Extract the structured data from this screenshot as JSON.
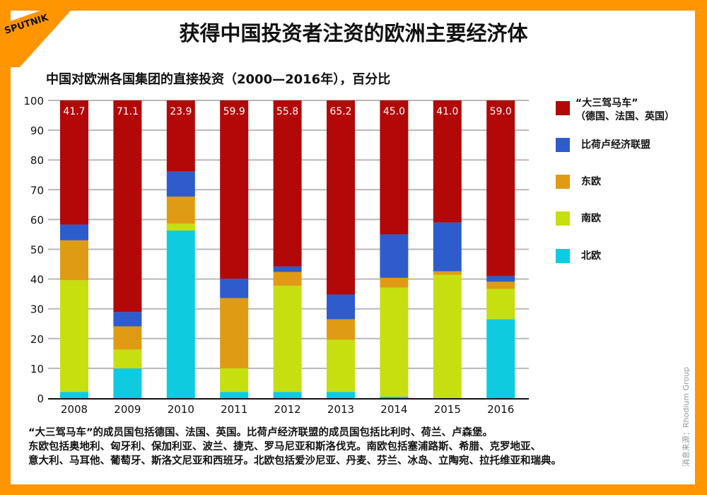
{
  "brand": {
    "logo_text": "SPUTNIK",
    "frame_color": "#ff9500"
  },
  "title": "获得中国投资者注资的欧洲主要经济体",
  "chart_data": {
    "type": "bar",
    "stacked": true,
    "title": "中国对欧洲各国集团的直接投资（2000—2016年），百分比",
    "xlabel": "",
    "ylabel": "",
    "categories": [
      "2008",
      "2009",
      "2010",
      "2011",
      "2012",
      "2013",
      "2014",
      "2015",
      "2016"
    ],
    "ylim": [
      0,
      100
    ],
    "yticks": [
      0,
      10,
      20,
      30,
      40,
      50,
      60,
      70,
      80,
      90,
      100
    ],
    "grid": true,
    "legend_position": "right",
    "series": [
      {
        "name": "北欧",
        "color": "#0fcbe0",
        "values": [
          2.1,
          10.0,
          56.3,
          2.1,
          2.1,
          2.1,
          0.5,
          0.0,
          26.5
        ]
      },
      {
        "name": "南欧",
        "color": "#c6e00f",
        "values": [
          37.5,
          6.3,
          2.3,
          7.9,
          35.6,
          17.5,
          36.6,
          41.4,
          10.2
        ]
      },
      {
        "name": "东欧",
        "color": "#e09b15",
        "values": [
          13.4,
          7.8,
          9.1,
          23.6,
          4.7,
          6.9,
          3.3,
          1.2,
          2.4
        ]
      },
      {
        "name": "比荷卢经济联盟",
        "color": "#2e5ccd",
        "values": [
          5.3,
          4.8,
          8.4,
          6.5,
          1.8,
          8.3,
          14.6,
          16.4,
          1.9
        ]
      },
      {
        "name": "“大三驾马车”",
        "name_line2": "（德国、法国、英国）",
        "color": "#b20808",
        "values": [
          41.7,
          71.1,
          23.9,
          59.9,
          55.8,
          65.2,
          45.0,
          41.0,
          59.0
        ]
      }
    ],
    "data_labels": [
      "41.7",
      "71.1",
      "23.9",
      "59.9",
      "55.8",
      "65.2",
      "45.0",
      "41.0",
      "59.0"
    ]
  },
  "footnote": [
    "“大三驾马车”的成员国包括德国、法国、英国。比荷卢经济联盟的成员国包括比利时、荷兰、卢森堡。",
    "东欧包括奥地利、匈牙利、保加利亚、波兰、捷克、罗马尼亚和斯洛伐克。南欧包括塞浦路斯、希腊、克罗地亚、",
    "意大利、马耳他、葡萄牙、斯洛文尼亚和西班牙。北欧包括爱沙尼亚、丹麦、芬兰、冰岛、立陶宛、拉托维亚和瑞典。"
  ],
  "source": "消息来源：Rhodium Group"
}
